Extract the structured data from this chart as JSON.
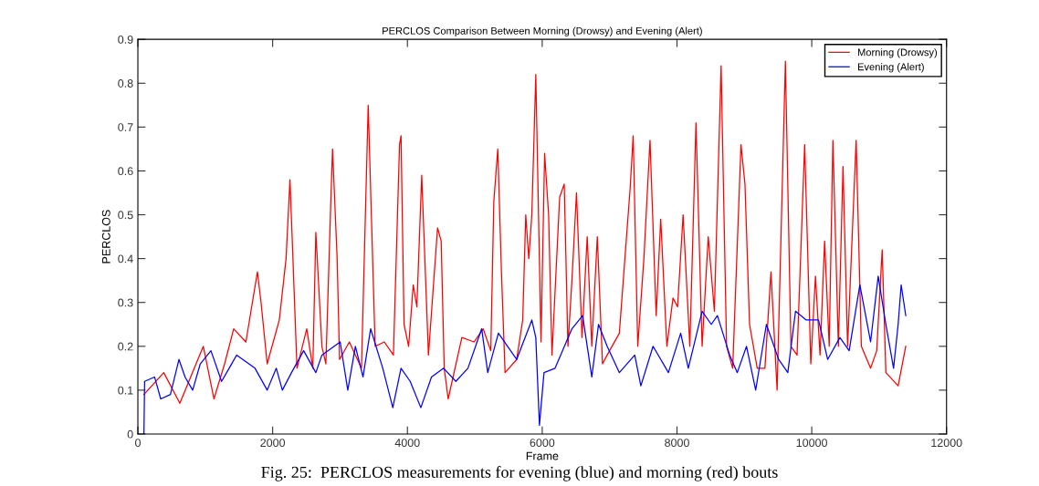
{
  "chart_data": {
    "type": "line",
    "title": "PERCLOS Comparison Between Morning (Drowsy) and Evening (Alert)",
    "xlabel": "Frame",
    "ylabel": "PERCLOS",
    "xlim": [
      0,
      12000
    ],
    "ylim": [
      0,
      0.9
    ],
    "xticks": [
      0,
      2000,
      4000,
      6000,
      8000,
      10000,
      12000
    ],
    "yticks": [
      0,
      0.1,
      0.2,
      0.3,
      0.4,
      0.5,
      0.6,
      0.7,
      0.8,
      0.9
    ],
    "grid": false,
    "legend": "top right",
    "marker": "none",
    "line_style": "solid",
    "annotations": [
      "Fig. 25:  PERCLOS measurements for evening (blue) and morning (red) bouts"
    ],
    "series": [
      {
        "name": "Morning (Drowsy)",
        "color": "#ff0000",
        "x": [
          90,
          384,
          623,
          971,
          1129,
          1287,
          1422,
          1603,
          1774,
          1828,
          1919,
          2099,
          2199,
          2257,
          2289,
          2361,
          2506,
          2596,
          2641,
          2731,
          2790,
          2867,
          2889,
          2957,
          2993,
          3138,
          3318,
          3418,
          3521,
          3657,
          3792,
          3883,
          3905,
          3950,
          4018,
          4086,
          4140,
          4212,
          4312,
          4447,
          4501,
          4546,
          4605,
          4808,
          4989,
          5124,
          5237,
          5282,
          5341,
          5395,
          5449,
          5621,
          5711,
          5756,
          5801,
          5846,
          5905,
          5982,
          6036,
          6095,
          6145,
          6259,
          6327,
          6382,
          6441,
          6509,
          6591,
          6668,
          6736,
          6818,
          6895,
          6964,
          7145,
          7227,
          7305,
          7350,
          7418,
          7509,
          7600,
          7691,
          7759,
          7850,
          7941,
          8009,
          8091,
          8191,
          8282,
          8373,
          8464,
          8555,
          8655,
          8736,
          8827,
          8950,
          9009,
          9077,
          9191,
          9305,
          9395,
          9486,
          9609,
          9691,
          9782,
          9895,
          9986,
          10055,
          10123,
          10191,
          10259,
          10314,
          10395,
          10464,
          10532,
          10659,
          10736,
          10873,
          10964,
          11045,
          11100,
          11282,
          11395
        ],
        "values": [
          0.09,
          0.14,
          0.07,
          0.2,
          0.08,
          0.16,
          0.24,
          0.21,
          0.37,
          0.3,
          0.16,
          0.26,
          0.4,
          0.58,
          0.45,
          0.15,
          0.24,
          0.15,
          0.46,
          0.2,
          0.16,
          0.55,
          0.65,
          0.4,
          0.17,
          0.21,
          0.15,
          0.75,
          0.2,
          0.21,
          0.18,
          0.66,
          0.68,
          0.25,
          0.2,
          0.34,
          0.29,
          0.59,
          0.18,
          0.47,
          0.44,
          0.15,
          0.08,
          0.22,
          0.21,
          0.24,
          0.19,
          0.53,
          0.65,
          0.37,
          0.14,
          0.17,
          0.26,
          0.5,
          0.4,
          0.5,
          0.82,
          0.21,
          0.64,
          0.5,
          0.18,
          0.54,
          0.57,
          0.2,
          0.35,
          0.55,
          0.22,
          0.45,
          0.2,
          0.45,
          0.16,
          0.18,
          0.23,
          0.4,
          0.56,
          0.68,
          0.2,
          0.4,
          0.67,
          0.27,
          0.49,
          0.2,
          0.31,
          0.29,
          0.5,
          0.2,
          0.71,
          0.2,
          0.45,
          0.28,
          0.84,
          0.2,
          0.15,
          0.66,
          0.57,
          0.25,
          0.15,
          0.15,
          0.37,
          0.1,
          0.85,
          0.2,
          0.18,
          0.66,
          0.16,
          0.36,
          0.18,
          0.44,
          0.2,
          0.67,
          0.2,
          0.61,
          0.2,
          0.67,
          0.2,
          0.15,
          0.19,
          0.42,
          0.14,
          0.11,
          0.2
        ]
      },
      {
        "name": "Evening (Alert)",
        "color": "#0000ff",
        "x": [
          90,
          100,
          248,
          339,
          483,
          610,
          700,
          813,
          926,
          1084,
          1242,
          1467,
          1738,
          1919,
          2054,
          2144,
          2280,
          2460,
          2641,
          2731,
          3002,
          3115,
          3228,
          3341,
          3454,
          3634,
          3783,
          3905,
          4041,
          4199,
          4357,
          4537,
          4718,
          4898,
          5102,
          5192,
          5350,
          5621,
          5846,
          5905,
          5959,
          6027,
          6191,
          6441,
          6600,
          6736,
          6836,
          6964,
          7145,
          7373,
          7464,
          7645,
          7873,
          8055,
          8168,
          8373,
          8509,
          8600,
          8782,
          8895,
          9032,
          9168,
          9327,
          9509,
          9645,
          9759,
          9918,
          10100,
          10236,
          10418,
          10555,
          10714,
          10873,
          10986,
          11100,
          11214,
          11282,
          11327,
          11395
        ],
        "values": [
          0.0,
          0.12,
          0.13,
          0.08,
          0.09,
          0.17,
          0.13,
          0.1,
          0.16,
          0.19,
          0.12,
          0.18,
          0.15,
          0.1,
          0.15,
          0.1,
          0.14,
          0.19,
          0.14,
          0.18,
          0.21,
          0.1,
          0.2,
          0.13,
          0.24,
          0.15,
          0.06,
          0.15,
          0.12,
          0.06,
          0.13,
          0.15,
          0.12,
          0.15,
          0.24,
          0.14,
          0.23,
          0.17,
          0.26,
          0.22,
          0.02,
          0.14,
          0.15,
          0.24,
          0.27,
          0.13,
          0.25,
          0.2,
          0.14,
          0.18,
          0.11,
          0.2,
          0.14,
          0.23,
          0.15,
          0.28,
          0.25,
          0.27,
          0.18,
          0.14,
          0.2,
          0.1,
          0.25,
          0.17,
          0.14,
          0.28,
          0.26,
          0.26,
          0.17,
          0.22,
          0.19,
          0.34,
          0.21,
          0.36,
          0.25,
          0.15,
          0.25,
          0.34,
          0.27
        ]
      }
    ]
  }
}
